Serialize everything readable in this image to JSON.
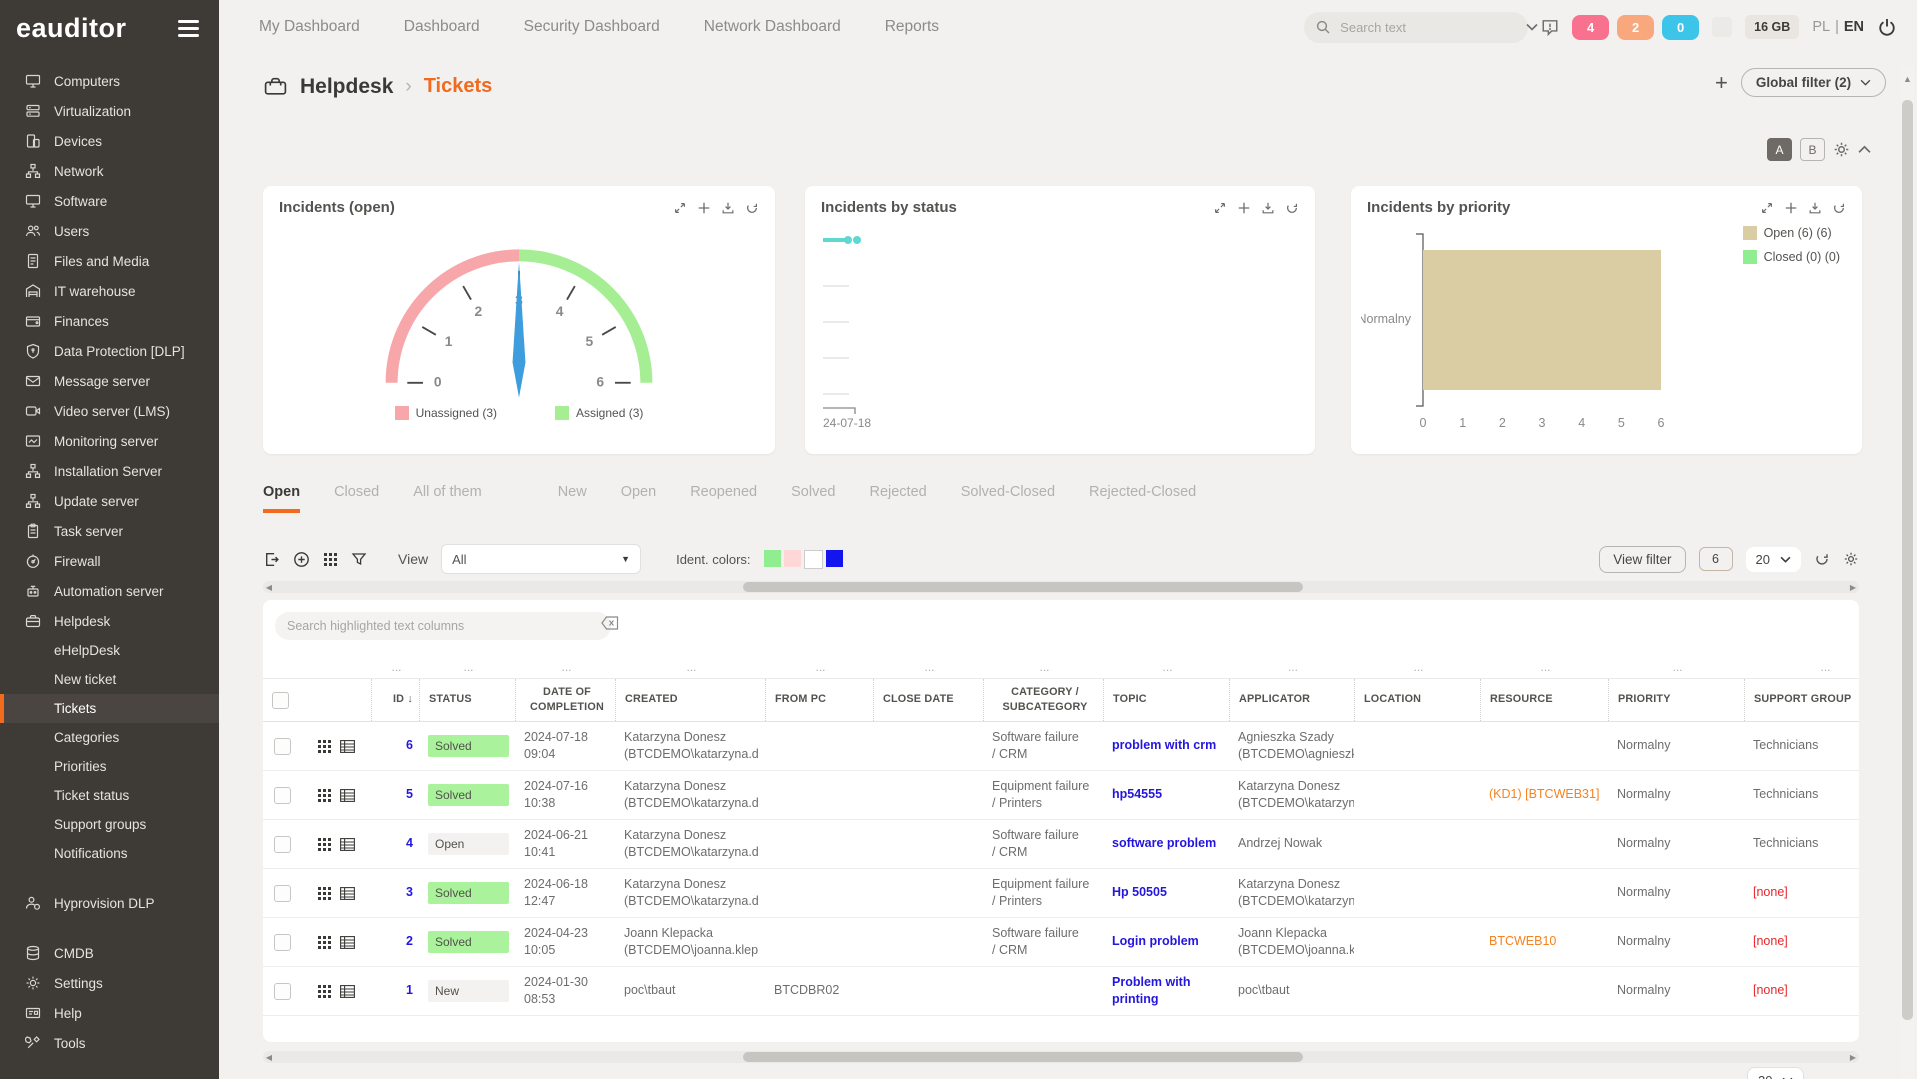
{
  "brand": {
    "logo": "eauditor"
  },
  "colors": {
    "accent": "#f26a1c",
    "link": "#2416dd",
    "resource": "#f5821f",
    "danger": "#e8262a",
    "solved_badge": "#aaf29b",
    "sidebar_bg": "#3e3a36"
  },
  "topnav": {
    "items": [
      "My Dashboard",
      "Dashboard",
      "Security Dashboard",
      "Network Dashboard",
      "Reports"
    ],
    "search_placeholder": "Search text",
    "badges": [
      {
        "name": "alerts-critical",
        "value": "4",
        "color": "#f8718f"
      },
      {
        "name": "alerts-warning",
        "value": "2",
        "color": "#f9a87e"
      },
      {
        "name": "alerts-info",
        "value": "0",
        "color": "#3cc5e8"
      }
    ],
    "memory": "16 GB",
    "lang_primary": "PL",
    "lang_secondary": "EN"
  },
  "sidebar": {
    "items": [
      {
        "label": "Computers",
        "icon": "monitor"
      },
      {
        "label": "Virtualization",
        "icon": "server"
      },
      {
        "label": "Devices",
        "icon": "device"
      },
      {
        "label": "Network",
        "icon": "network"
      },
      {
        "label": "Software",
        "icon": "monitor"
      },
      {
        "label": "Users",
        "icon": "users"
      },
      {
        "label": "Files and Media",
        "icon": "file"
      },
      {
        "label": "IT warehouse",
        "icon": "warehouse"
      },
      {
        "label": "Finances",
        "icon": "wallet"
      },
      {
        "label": "Data Protection [DLP]",
        "icon": "shield"
      },
      {
        "label": "Message server",
        "icon": "mail"
      },
      {
        "label": "Video server (LMS)",
        "icon": "video"
      },
      {
        "label": "Monitoring server",
        "icon": "monitor-graph"
      },
      {
        "label": "Installation Server",
        "icon": "network"
      },
      {
        "label": "Update server",
        "icon": "network"
      },
      {
        "label": "Task server",
        "icon": "clipboard"
      },
      {
        "label": "Firewall",
        "icon": "firewall"
      },
      {
        "label": "Automation server",
        "icon": "robot"
      },
      {
        "label": "Helpdesk",
        "icon": "briefcase",
        "children": [
          {
            "label": "eHelpDesk"
          },
          {
            "label": "New ticket"
          },
          {
            "label": "Tickets",
            "active": true
          },
          {
            "label": "Categories"
          },
          {
            "label": "Priorities"
          },
          {
            "label": "Ticket status"
          },
          {
            "label": "Support groups"
          },
          {
            "label": "Notifications"
          }
        ]
      },
      {
        "gap": true
      },
      {
        "label": "Hyprovision DLP",
        "icon": "person"
      },
      {
        "gap": true
      },
      {
        "label": "CMDB",
        "icon": "database"
      },
      {
        "label": "Settings",
        "icon": "gear"
      },
      {
        "label": "Help",
        "icon": "help"
      },
      {
        "label": "Tools",
        "icon": "tools"
      }
    ]
  },
  "breadcrumb": {
    "section": "Helpdesk",
    "separator": "›",
    "page": "Tickets"
  },
  "filters": {
    "global_filter_label": "Global filter (2)",
    "view_a": "A",
    "view_b": "B"
  },
  "cards": [
    {
      "title": "Incidents (open)"
    },
    {
      "title": "Incidents by status"
    },
    {
      "title": "Incidents by priority"
    }
  ],
  "chart_data": [
    {
      "type": "gauge",
      "title": "Incidents (open)",
      "min": 0,
      "max": 6,
      "value": 3,
      "ticks": [
        0,
        1,
        2,
        3,
        4,
        5,
        6
      ],
      "segments": [
        {
          "label": "Unassigned (3)",
          "from": 0,
          "to": 3,
          "color": "#f7a6aa"
        },
        {
          "label": "Assigned (3)",
          "from": 3,
          "to": 6,
          "color": "#a5ee93"
        }
      ],
      "needle_color": "#3d9ddd"
    },
    {
      "type": "line",
      "title": "Incidents by status",
      "x": [
        "24-07-18"
      ],
      "series": [
        {
          "name": "Incidents",
          "values": [
            0
          ],
          "color": "#5fd8d2"
        }
      ],
      "legend_position": "none"
    },
    {
      "type": "bar",
      "title": "Incidents by priority",
      "orientation": "horizontal",
      "categories": [
        "Normalny"
      ],
      "series": [
        {
          "name": "Open (6)",
          "values": [
            6
          ],
          "color": "#dbcda3"
        },
        {
          "name": "Closed (0)",
          "values": [
            0
          ],
          "color": "#90ee90"
        }
      ],
      "xlim": [
        0,
        6
      ],
      "xticks": [
        0,
        1,
        2,
        3,
        4,
        5,
        6
      ],
      "legend_position": "top-right"
    }
  ],
  "tabs": {
    "group1": [
      "Open",
      "Closed",
      "All of them"
    ],
    "group2": [
      "New",
      "Open",
      "Reopened",
      "Solved",
      "Rejected",
      "Solved-Closed",
      "Rejected-Closed"
    ],
    "active": "Open"
  },
  "toolbar": {
    "view_label": "View",
    "view_value": "All",
    "ident_label": "Ident. colors:",
    "ident_colors": [
      "#90ee90",
      "#ffd7d7",
      "#ffffff",
      "#1314ee"
    ],
    "view_filter_label": "View filter",
    "result_count": "6",
    "page_size": "20"
  },
  "table": {
    "search_placeholder": "Search highlighted text columns",
    "filter_placeholder": "...",
    "columns": [
      "",
      "",
      "ID",
      "STATUS",
      "DATE OF COMPLETION",
      "CREATED",
      "FROM PC",
      "CLOSE DATE",
      "CATEGORY / SUBCATEGORY",
      "TOPIC",
      "APPLICATOR",
      "LOCATION",
      "RESOURCE",
      "PRIORITY",
      "SUPPORT GROUP"
    ],
    "rows": [
      {
        "id": "6",
        "status": "Solved",
        "status_type": "solved",
        "date": [
          "2024-07-18",
          "09:04"
        ],
        "created": [
          "Katarzyna Donesz",
          "(BTCDEMO\\katarzyna.d"
        ],
        "from_pc": "",
        "close_date": "",
        "category": [
          "Software failure",
          "/ CRM"
        ],
        "topic": [
          "problem with crm"
        ],
        "applicator": [
          "Agnieszka Szady",
          "(BTCDEMO\\agnieszka.sz"
        ],
        "location": "",
        "resource": "",
        "priority": "Normalny",
        "support_group": "Technicians"
      },
      {
        "id": "5",
        "status": "Solved",
        "status_type": "solved",
        "date": [
          "2024-07-16",
          "10:38"
        ],
        "created": [
          "Katarzyna Donesz",
          "(BTCDEMO\\katarzyna.d"
        ],
        "from_pc": "",
        "close_date": "",
        "category": [
          "Equipment failure",
          "/ Printers"
        ],
        "topic": [
          "hp54555"
        ],
        "applicator": [
          "Katarzyna Donesz",
          "(BTCDEMO\\katarzyna.d"
        ],
        "location": "",
        "resource": "(KD1) [BTCWEB31]",
        "priority": "Normalny",
        "support_group": "Technicians"
      },
      {
        "id": "4",
        "status": "Open",
        "status_type": "open",
        "date": [
          "2024-06-21",
          "10:41"
        ],
        "created": [
          "Katarzyna Donesz",
          "(BTCDEMO\\katarzyna.d"
        ],
        "from_pc": "",
        "close_date": "",
        "category": [
          "Software failure",
          "/ CRM"
        ],
        "topic": [
          "software problem"
        ],
        "applicator": [
          "Andrzej Nowak"
        ],
        "location": "",
        "resource": "",
        "priority": "Normalny",
        "support_group": "Technicians"
      },
      {
        "id": "3",
        "status": "Solved",
        "status_type": "solved",
        "date": [
          "2024-06-18",
          "12:47"
        ],
        "created": [
          "Katarzyna Donesz",
          "(BTCDEMO\\katarzyna.d"
        ],
        "from_pc": "",
        "close_date": "",
        "category": [
          "Equipment failure",
          "/ Printers"
        ],
        "topic": [
          "Hp 50505"
        ],
        "applicator": [
          "Katarzyna Donesz",
          "(BTCDEMO\\katarzyna.d"
        ],
        "location": "",
        "resource": "",
        "priority": "Normalny",
        "support_group": "[none]"
      },
      {
        "id": "2",
        "status": "Solved",
        "status_type": "solved",
        "date": [
          "2024-04-23",
          "10:05"
        ],
        "created": [
          "Joann Klepacka",
          "(BTCDEMO\\joanna.klep"
        ],
        "from_pc": "",
        "close_date": "",
        "category": [
          "Software failure",
          "/ CRM"
        ],
        "topic": [
          "Login problem"
        ],
        "applicator": [
          "Joann Klepacka",
          "(BTCDEMO\\joanna.klep"
        ],
        "location": "",
        "resource": "BTCWEB10",
        "priority": "Normalny",
        "support_group": "[none]"
      },
      {
        "id": "1",
        "status": "New",
        "status_type": "new",
        "date": [
          "2024-01-30",
          "08:53"
        ],
        "created": [
          "poc\\tbaut"
        ],
        "from_pc": "BTCDBR02",
        "close_date": "",
        "category": [],
        "topic": [
          "Problem with",
          "printing"
        ],
        "applicator": [
          "poc\\tbaut"
        ],
        "location": "",
        "resource": "",
        "priority": "Normalny",
        "support_group": "[none]"
      }
    ]
  },
  "footer": {
    "page_size": "20"
  }
}
